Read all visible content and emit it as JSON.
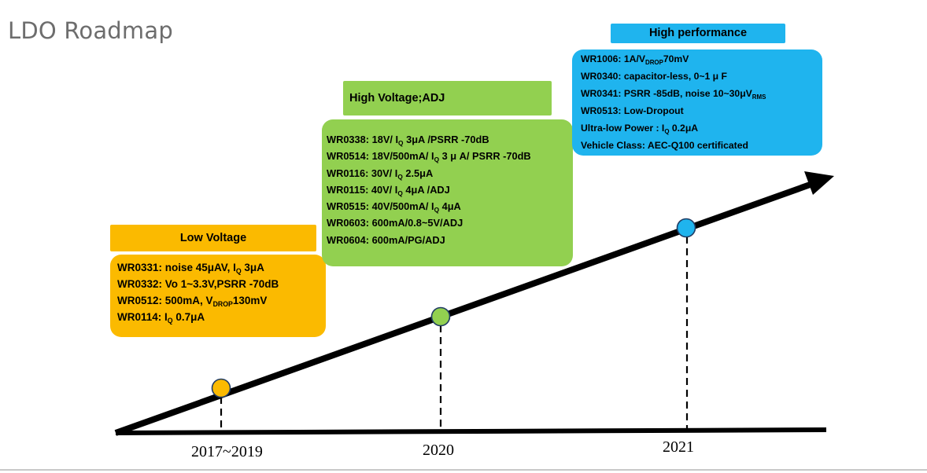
{
  "title": "LDO Roadmap",
  "colors": {
    "low_voltage": "#fbba00",
    "high_voltage": "#92d050",
    "high_performance": "#1fb4ee",
    "line": "#000000"
  },
  "low_voltage": {
    "header": "Low Voltage",
    "items": [
      {
        "prefix": "WR0331:  noise 45μAV,  I",
        "sub": "Q",
        "suffix": " 3μA"
      },
      {
        "prefix": "WR0332:  Vo 1~3.3V,PSRR  -70dB",
        "sub": "",
        "suffix": ""
      },
      {
        "prefix": "WR0512:  500mA, V",
        "sub": "DROP",
        "suffix": "130mV"
      },
      {
        "prefix": "WR0114:  I",
        "sub": "Q",
        "suffix": " 0.7μA"
      }
    ]
  },
  "high_voltage": {
    "header": "High Voltage;ADJ",
    "items": [
      {
        "prefix": "WR0338:  18V/ I",
        "sub": "Q",
        "suffix": " 3μA /PSRR -70dB"
      },
      {
        "prefix": "WR0514:  18V/500mA/ I",
        "sub": "Q",
        "suffix": " 3 μ A/ PSRR -70dB"
      },
      {
        "prefix": "WR0116:  30V/ I",
        "sub": "Q",
        "suffix": " 2.5μA"
      },
      {
        "prefix": "WR0115:  40V/  I",
        "sub": "Q",
        "suffix": " 4μA /ADJ"
      },
      {
        "prefix": "WR0515:  40V/500mA/  I",
        "sub": "Q",
        "suffix": " 4μA"
      },
      {
        "prefix": "WR0603:  600mA/0.8~5V/ADJ",
        "sub": "",
        "suffix": ""
      },
      {
        "prefix": "WR0604:  600mA/PG/ADJ",
        "sub": "",
        "suffix": ""
      }
    ]
  },
  "high_performance": {
    "header": "High performance",
    "items": [
      {
        "prefix": "WR1006:  1A/V",
        "sub": "DROP",
        "suffix": "70mV"
      },
      {
        "prefix": "WR0340:  capacitor-less, 0~1 μ F",
        "sub": "",
        "suffix": ""
      },
      {
        "prefix": "WR0341:  PSRR -85dB, noise 10~30μV",
        "sub": "RMS",
        "suffix": ""
      },
      {
        "prefix": "WR0513:  Low-Dropout",
        "sub": "",
        "suffix": ""
      },
      {
        "prefix": "Ultra-low Power : I",
        "sub": "Q",
        "suffix": " 0.2μA"
      },
      {
        "prefix": "Vehicle Class:   AEC-Q100 certificated",
        "sub": "",
        "suffix": ""
      }
    ]
  },
  "milestones": [
    {
      "year": "2017~2019",
      "color": "#fbba00"
    },
    {
      "year": "2020",
      "color": "#92d050"
    },
    {
      "year": "2021",
      "color": "#1fb4ee"
    }
  ]
}
